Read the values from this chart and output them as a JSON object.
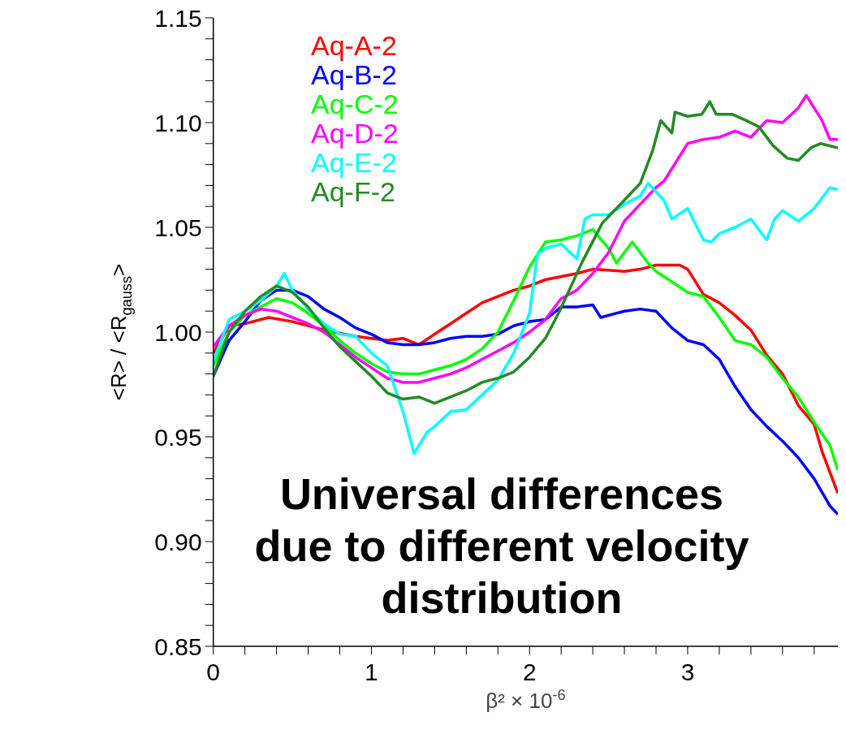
{
  "chart_data": {
    "type": "line",
    "xlabel": "β² × 10$^{-6}$",
    "ylabel": "<R> / <R$_{gauss}$>",
    "xlim": [
      0,
      3.95
    ],
    "xticks": [
      0,
      {
        "value": 0.2,
        "label": null
      },
      {
        "value": 0.4,
        "label": null
      },
      {
        "value": 0.6,
        "label": null
      },
      {
        "value": 0.8,
        "label": null
      },
      1,
      {
        "value": 1.2,
        "label": null
      },
      {
        "value": 1.4,
        "label": null
      },
      {
        "value": 1.6,
        "label": null
      },
      {
        "value": 1.8,
        "label": null
      },
      2,
      {
        "value": 2.2,
        "label": null
      },
      {
        "value": 2.4,
        "label": null
      },
      {
        "value": 2.6,
        "label": null
      },
      {
        "value": 2.8,
        "label": null
      },
      3,
      {
        "value": 3.2,
        "label": null
      },
      {
        "value": 3.4,
        "label": null
      },
      {
        "value": 3.6,
        "label": null
      },
      {
        "value": 3.8,
        "label": null
      }
    ],
    "ylim": [
      0.85,
      1.15
    ],
    "yticks": [
      0.85,
      {
        "value": 0.86,
        "label": null
      },
      {
        "value": 0.87,
        "label": null
      },
      {
        "value": 0.88,
        "label": null
      },
      {
        "value": 0.89,
        "label": null
      },
      {
        "value": 0.9,
        "label": "0.90"
      },
      {
        "value": 0.91,
        "label": null
      },
      {
        "value": 0.92,
        "label": null
      },
      {
        "value": 0.93,
        "label": null
      },
      {
        "value": 0.94,
        "label": null
      },
      0.95,
      {
        "value": 0.96,
        "label": null
      },
      {
        "value": 0.97,
        "label": null
      },
      {
        "value": 0.98,
        "label": null
      },
      {
        "value": 0.99,
        "label": null
      },
      {
        "value": 1,
        "label": "1.00"
      },
      {
        "value": 1.01,
        "label": null
      },
      {
        "value": 1.02,
        "label": null
      },
      {
        "value": 1.03,
        "label": null
      },
      {
        "value": 1.04,
        "label": null
      },
      1.05,
      {
        "value": 1.06,
        "label": null
      },
      {
        "value": 1.07,
        "label": null
      },
      {
        "value": 1.08,
        "label": null
      },
      {
        "value": 1.09,
        "label": null
      },
      {
        "value": 1.1,
        "label": "1.10"
      },
      {
        "value": 1.11,
        "label": null
      },
      {
        "value": 1.12,
        "label": null
      },
      {
        "value": 1.13,
        "label": null
      },
      {
        "value": 1.14,
        "label": null
      },
      1.15
    ],
    "grid": false,
    "legend": "top left",
    "marker": "none",
    "line_style": "solid",
    "annotations": [
      "Universal differences due to different velocity distribution"
    ],
    "series": [
      {
        "name": "Aq-A-2",
        "color": "#ff0000",
        "x": [
          0,
          0.1,
          0.2,
          0.35,
          0.5,
          0.7,
          0.9,
          1.0,
          1.1,
          1.2,
          1.3,
          1.4,
          1.5,
          1.6,
          1.7,
          1.8,
          1.9,
          2.0,
          2.1,
          2.3,
          2.4,
          2.6,
          2.7,
          2.8,
          2.95,
          3.0,
          3.1,
          3.2,
          3.3,
          3.4,
          3.5,
          3.6,
          3.7,
          3.8,
          3.85,
          3.95
        ],
        "values": [
          0.99,
          1.003,
          1.004,
          1.007,
          1.005,
          1.001,
          0.998,
          0.997,
          0.996,
          0.997,
          0.994,
          0.999,
          1.004,
          1.009,
          1.014,
          1.017,
          1.02,
          1.022,
          1.025,
          1.028,
          1.03,
          1.029,
          1.03,
          1.032,
          1.032,
          1.03,
          1.018,
          1.014,
          1.008,
          1.001,
          0.989,
          0.98,
          0.965,
          0.956,
          0.943,
          0.923
        ]
      },
      {
        "name": "Aq-B-2",
        "color": "#0000ff",
        "x": [
          0,
          0.1,
          0.2,
          0.3,
          0.4,
          0.5,
          0.6,
          0.7,
          0.8,
          0.9,
          1.0,
          1.1,
          1.2,
          1.3,
          1.4,
          1.5,
          1.6,
          1.7,
          1.8,
          1.9,
          2.0,
          2.1,
          2.2,
          2.3,
          2.4,
          2.45,
          2.6,
          2.7,
          2.8,
          2.9,
          3.0,
          3.1,
          3.2,
          3.3,
          3.4,
          3.5,
          3.6,
          3.7,
          3.8,
          3.9,
          3.95
        ],
        "values": [
          0.979,
          0.996,
          1.005,
          1.015,
          1.02,
          1.02,
          1.017,
          1.011,
          1.007,
          1.002,
          0.999,
          0.995,
          0.994,
          0.994,
          0.995,
          0.997,
          0.998,
          0.998,
          0.999,
          1.003,
          1.005,
          1.006,
          1.012,
          1.012,
          1.013,
          1.007,
          1.01,
          1.011,
          1.01,
          1.002,
          0.996,
          0.994,
          0.987,
          0.974,
          0.963,
          0.955,
          0.948,
          0.94,
          0.93,
          0.917,
          0.913
        ]
      },
      {
        "name": "Aq-C-2",
        "color": "#00ff00",
        "x": [
          0,
          0.1,
          0.2,
          0.3,
          0.4,
          0.5,
          0.6,
          0.7,
          0.8,
          0.9,
          1.0,
          1.1,
          1.2,
          1.3,
          1.4,
          1.5,
          1.6,
          1.7,
          1.8,
          1.9,
          2.0,
          2.1,
          2.2,
          2.3,
          2.4,
          2.5,
          2.55,
          2.65,
          2.75,
          2.8,
          2.9,
          3.0,
          3.1,
          3.2,
          3.3,
          3.4,
          3.5,
          3.6,
          3.7,
          3.8,
          3.9,
          3.95
        ],
        "values": [
          0.984,
          1.0,
          1.008,
          1.012,
          1.016,
          1.014,
          1.009,
          1.003,
          0.996,
          0.99,
          0.985,
          0.981,
          0.98,
          0.98,
          0.982,
          0.984,
          0.987,
          0.992,
          1.0,
          1.015,
          1.031,
          1.043,
          1.044,
          1.046,
          1.049,
          1.04,
          1.033,
          1.043,
          1.033,
          1.029,
          1.024,
          1.019,
          1.017,
          1.007,
          0.996,
          0.994,
          0.988,
          0.978,
          0.969,
          0.957,
          0.946,
          0.934
        ]
      },
      {
        "name": "Aq-D-2",
        "color": "#ff00ff",
        "x": [
          0,
          0.1,
          0.2,
          0.3,
          0.4,
          0.5,
          0.6,
          0.7,
          0.8,
          0.9,
          1.0,
          1.1,
          1.2,
          1.3,
          1.4,
          1.5,
          1.6,
          1.7,
          1.8,
          1.9,
          2.0,
          2.1,
          2.2,
          2.3,
          2.4,
          2.5,
          2.6,
          2.7,
          2.8,
          2.85,
          2.9,
          3.0,
          3.1,
          3.2,
          3.3,
          3.4,
          3.5,
          3.6,
          3.7,
          3.75,
          3.8,
          3.85,
          3.9,
          3.95
        ],
        "values": [
          0.993,
          1.003,
          1.008,
          1.011,
          1.01,
          1.007,
          1.004,
          1.0,
          0.994,
          0.988,
          0.983,
          0.978,
          0.976,
          0.976,
          0.978,
          0.98,
          0.983,
          0.987,
          0.991,
          0.995,
          1.0,
          1.006,
          1.016,
          1.02,
          1.028,
          1.038,
          1.053,
          1.061,
          1.069,
          1.072,
          1.078,
          1.09,
          1.092,
          1.093,
          1.096,
          1.093,
          1.101,
          1.1,
          1.107,
          1.113,
          1.107,
          1.101,
          1.092,
          1.092
        ]
      },
      {
        "name": "Aq-E-2",
        "color": "#00ffff",
        "x": [
          0,
          0.1,
          0.2,
          0.3,
          0.4,
          0.45,
          0.5,
          0.6,
          0.7,
          0.8,
          0.9,
          1.0,
          1.1,
          1.2,
          1.27,
          1.35,
          1.4,
          1.5,
          1.6,
          1.7,
          1.8,
          1.9,
          2.0,
          2.05,
          2.1,
          2.2,
          2.3,
          2.35,
          2.4,
          2.5,
          2.6,
          2.7,
          2.75,
          2.85,
          2.9,
          3.0,
          3.1,
          3.15,
          3.2,
          3.3,
          3.4,
          3.5,
          3.55,
          3.6,
          3.7,
          3.8,
          3.9,
          3.95
        ],
        "values": [
          0.986,
          1.006,
          1.01,
          1.015,
          1.022,
          1.028,
          1.02,
          1.011,
          1.004,
          0.999,
          0.998,
          0.99,
          0.984,
          0.962,
          0.942,
          0.952,
          0.955,
          0.962,
          0.963,
          0.97,
          0.977,
          0.99,
          1.009,
          1.037,
          1.04,
          1.042,
          1.035,
          1.054,
          1.056,
          1.056,
          1.061,
          1.065,
          1.071,
          1.063,
          1.054,
          1.059,
          1.044,
          1.043,
          1.047,
          1.05,
          1.054,
          1.044,
          1.054,
          1.058,
          1.053,
          1.059,
          1.069,
          1.068
        ]
      },
      {
        "name": "Aq-F-2",
        "color": "#228b22",
        "x": [
          0,
          0.1,
          0.2,
          0.3,
          0.4,
          0.5,
          0.6,
          0.7,
          0.8,
          0.9,
          1.0,
          1.1,
          1.2,
          1.3,
          1.4,
          1.5,
          1.6,
          1.7,
          1.8,
          1.9,
          2.0,
          2.1,
          2.19,
          2.33,
          2.46,
          2.6,
          2.7,
          2.78,
          2.83,
          2.9,
          2.92,
          3.0,
          3.09,
          3.14,
          3.18,
          3.28,
          3.37,
          3.45,
          3.54,
          3.63,
          3.7,
          3.78,
          3.84,
          3.95
        ],
        "values": [
          0.979,
          1.0,
          1.01,
          1.017,
          1.022,
          1.019,
          1.012,
          1.002,
          0.993,
          0.986,
          0.979,
          0.971,
          0.968,
          0.969,
          0.966,
          0.969,
          0.972,
          0.976,
          0.978,
          0.981,
          0.988,
          0.997,
          1.01,
          1.033,
          1.052,
          1.063,
          1.071,
          1.087,
          1.101,
          1.095,
          1.105,
          1.103,
          1.104,
          1.11,
          1.104,
          1.104,
          1.101,
          1.098,
          1.089,
          1.083,
          1.082,
          1.088,
          1.09,
          1.088
        ]
      }
    ]
  }
}
